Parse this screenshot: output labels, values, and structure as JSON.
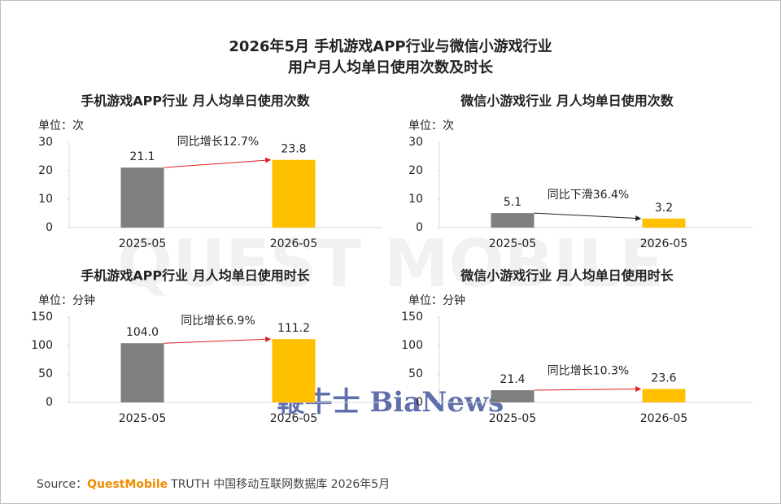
{
  "title_lines": [
    "2026年5月 手机游戏APP行业与微信小游戏行业",
    "用户月人均单日使用次数及时长"
  ],
  "chart_data": [
    {
      "type": "bar",
      "title": "手机游戏APP行业 月人均单日使用次数",
      "unit": "单位：次",
      "categories": [
        "2025-05",
        "2026-05"
      ],
      "values": [
        21.1,
        23.8
      ],
      "colors": [
        "#7f7f7f",
        "#ffc000"
      ],
      "ylim": [
        0,
        30
      ],
      "yticks": [
        0,
        10,
        20,
        30
      ],
      "annotation": "同比增长12.7%",
      "annotation_color": "#e02020"
    },
    {
      "type": "bar",
      "title": "微信小游戏行业 月人均单日使用次数",
      "unit": "单位：次",
      "categories": [
        "2025-05",
        "2026-05"
      ],
      "values": [
        5.1,
        3.2
      ],
      "colors": [
        "#7f7f7f",
        "#ffc000"
      ],
      "ylim": [
        0,
        30
      ],
      "yticks": [
        0,
        10,
        20,
        30
      ],
      "annotation": "同比下滑36.4%",
      "annotation_color": "#222222"
    },
    {
      "type": "bar",
      "title": "手机游戏APP行业 月人均单日使用时长",
      "unit": "单位：分钟",
      "categories": [
        "2025-05",
        "2026-05"
      ],
      "values": [
        104.0,
        111.2
      ],
      "value_labels": [
        "104.0",
        "111.2"
      ],
      "colors": [
        "#7f7f7f",
        "#ffc000"
      ],
      "ylim": [
        0,
        150
      ],
      "yticks": [
        0,
        50,
        100,
        150
      ],
      "annotation": "同比增长6.9%",
      "annotation_color": "#e02020"
    },
    {
      "type": "bar",
      "title": "微信小游戏行业 月人均单日使用时长",
      "unit": "单位：分钟",
      "categories": [
        "2025-05",
        "2026-05"
      ],
      "values": [
        21.4,
        23.6
      ],
      "colors": [
        "#7f7f7f",
        "#ffc000"
      ],
      "ylim": [
        0,
        150
      ],
      "yticks": [
        0,
        50,
        100,
        150
      ],
      "annotation": "同比增长10.3%",
      "annotation_color": "#e02020"
    }
  ],
  "source": {
    "prefix": "Source：",
    "brand": "QuestMobile",
    "text": "TRUTH 中国移动互联网数据库 2026年5月"
  },
  "watermarks": [
    "QUEST MOBILE",
    "鞭牛士 BiaNews"
  ]
}
